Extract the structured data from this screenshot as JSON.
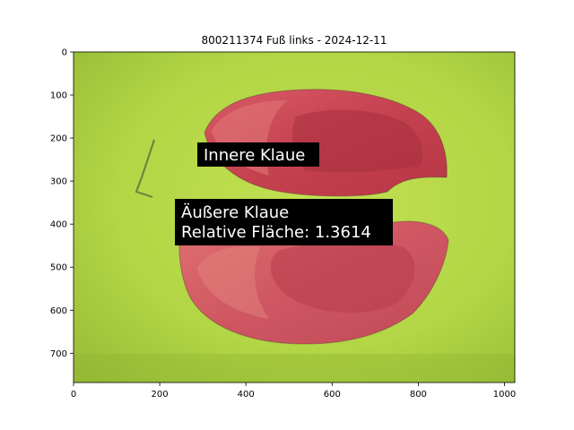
{
  "figure": {
    "title": "800211374 Fuß links - 2024-12-11"
  },
  "chart_data": {
    "type": "image",
    "title": "800211374 Fuß links - 2024-12-11",
    "xlabel": "",
    "ylabel": "",
    "xlim": [
      0,
      1024
    ],
    "ylim": [
      768,
      0
    ],
    "x_ticks": [
      0,
      200,
      400,
      600,
      800,
      1000
    ],
    "y_ticks": [
      0,
      100,
      200,
      300,
      400,
      500,
      600,
      700
    ],
    "grid": false,
    "annotations": [
      {
        "text": "Innere Klaue"
      },
      {
        "text": "Äußere Klaue",
        "line2": "Relative Fläche: 1.3614"
      }
    ],
    "colors": {
      "background": "#b5d84a",
      "overlay": "#c8455a",
      "label_box": "#000000",
      "label_text": "#ffffff"
    }
  }
}
